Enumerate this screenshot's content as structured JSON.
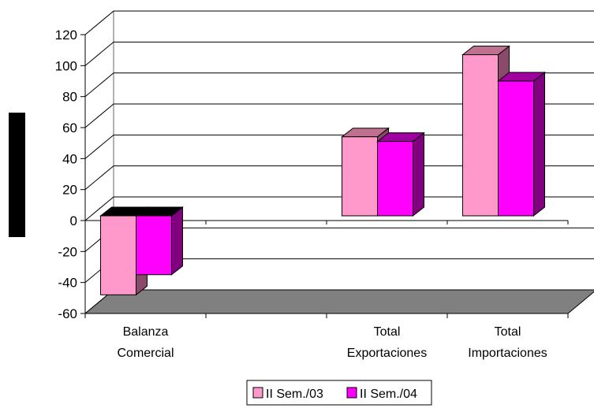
{
  "chart_data": {
    "type": "bar",
    "style": "3d-clustered-column",
    "categories": [
      [
        "Balanza",
        "Comercial"
      ],
      [
        "",
        ""
      ],
      [
        "Total",
        "Exportaciones"
      ],
      [
        "Total",
        "Importaciones"
      ]
    ],
    "series": [
      {
        "name": "II Sem./03",
        "values": [
          -51,
          null,
          51,
          104
        ],
        "color": "#ff99cc",
        "dark": "#8a4a6a"
      },
      {
        "name": "II Sem./04",
        "values": [
          -38,
          null,
          48,
          87
        ],
        "color": "#ff00ff",
        "dark": "#800080"
      }
    ],
    "ylim": [
      -60,
      120
    ],
    "yticks": [
      120,
      100,
      80,
      60,
      40,
      20,
      0,
      -20,
      -40,
      -60
    ],
    "ytick_labels": [
      "120",
      "100",
      "80",
      "60",
      "40",
      "20",
      "0",
      "-20",
      "-40",
      "-60"
    ],
    "grid": true,
    "floor_color": "#808080",
    "legend_position": "bottom"
  }
}
